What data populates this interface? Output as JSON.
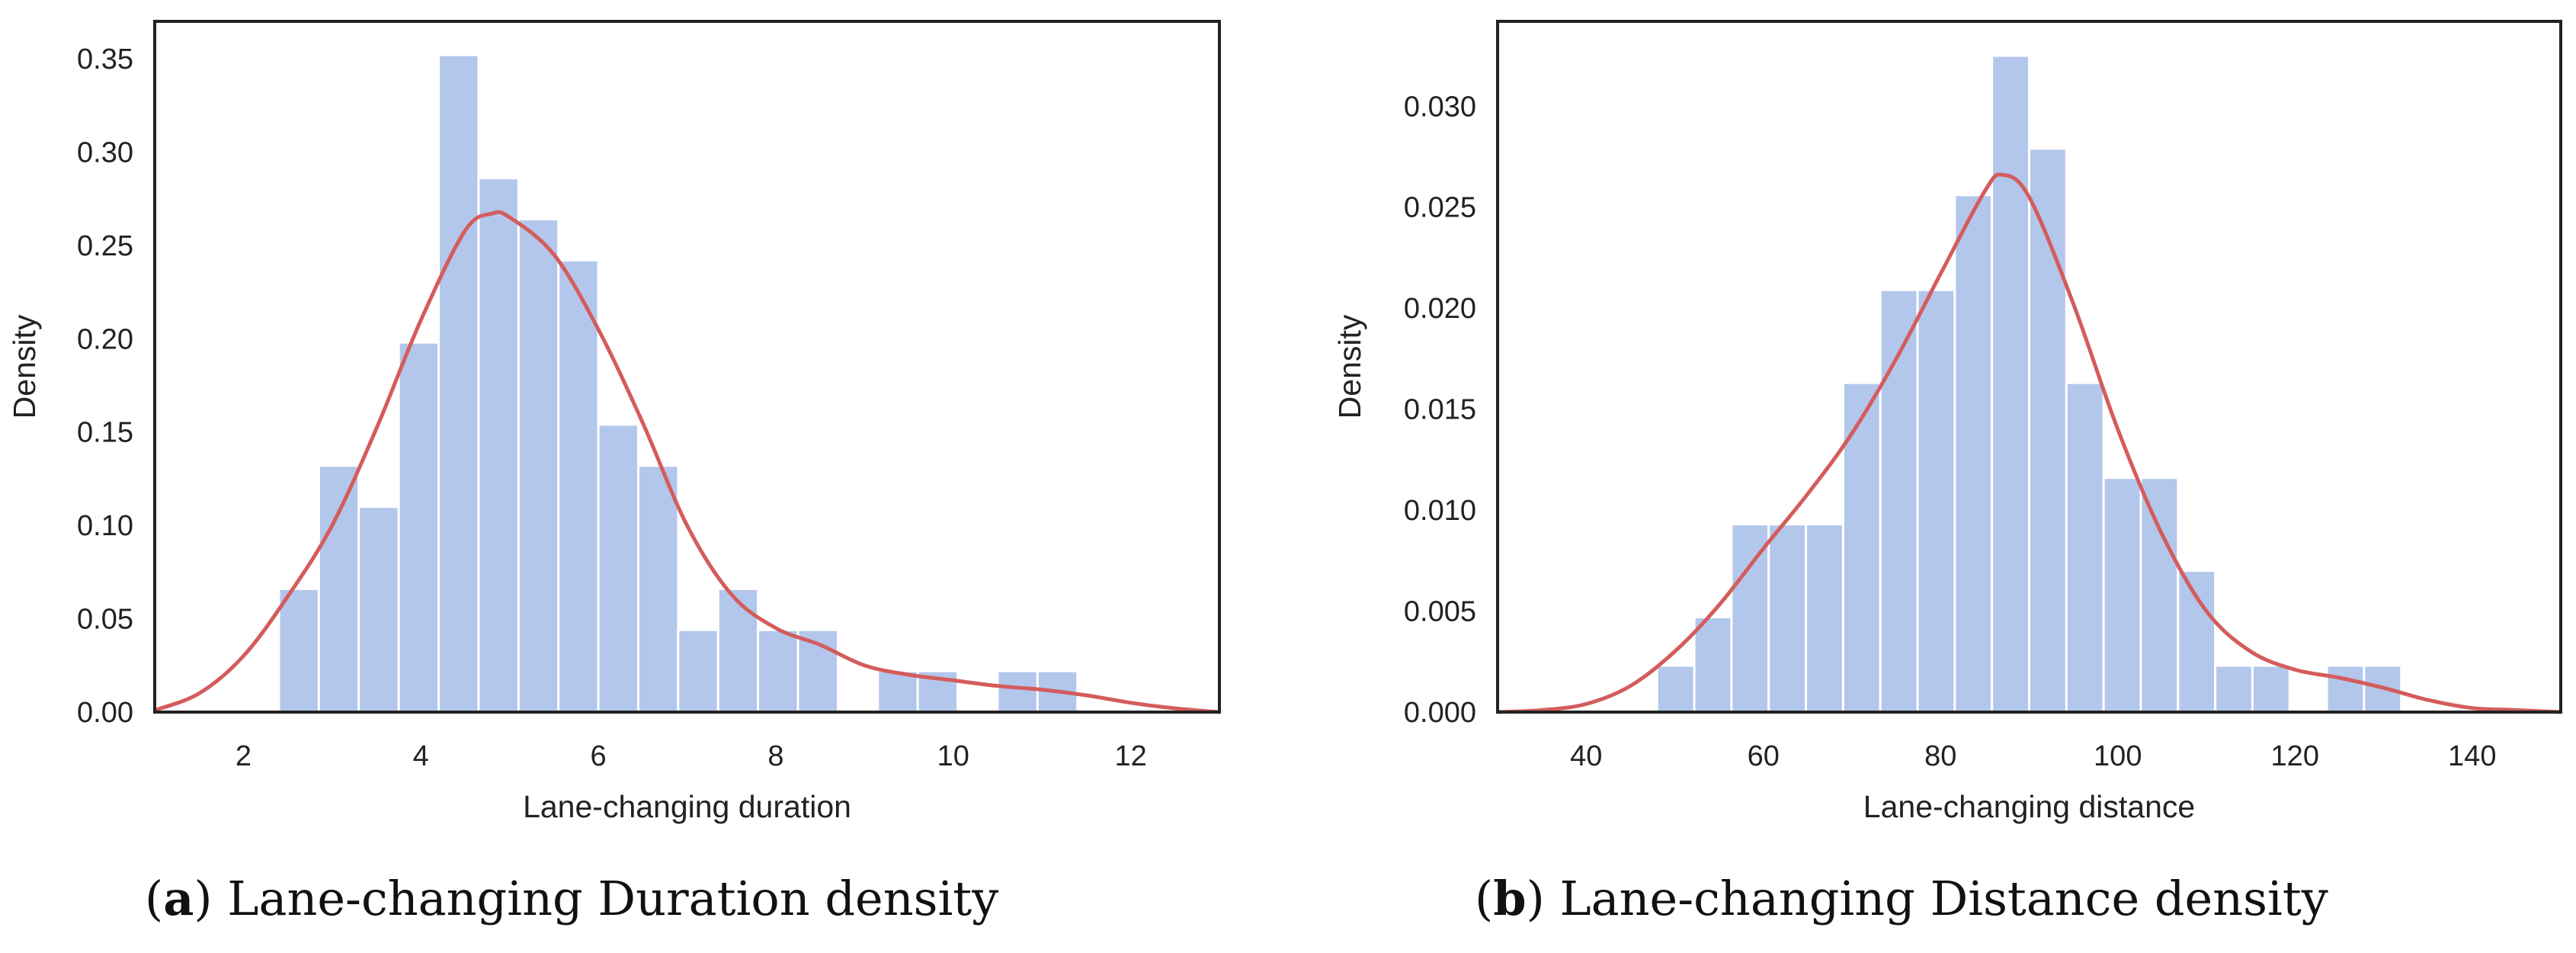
{
  "chart_data": [
    {
      "type": "bar",
      "subtype": "histogram-with-density",
      "xlabel": "Lane-changing duration",
      "ylabel": "Density",
      "xlim": [
        1.0,
        13.0
      ],
      "ylim": [
        0.0,
        0.37
      ],
      "xticks": [
        "2",
        "4",
        "6",
        "8",
        "10",
        "12"
      ],
      "yticks": [
        "0.00",
        "0.05",
        "0.10",
        "0.15",
        "0.20",
        "0.25",
        "0.30",
        "0.35"
      ],
      "bins": [
        {
          "x0": 2.4,
          "x1": 2.85,
          "density": 0.066
        },
        {
          "x0": 2.85,
          "x1": 3.3,
          "density": 0.132
        },
        {
          "x0": 3.3,
          "x1": 3.75,
          "density": 0.11
        },
        {
          "x0": 3.75,
          "x1": 4.2,
          "density": 0.198
        },
        {
          "x0": 4.2,
          "x1": 4.65,
          "density": 0.352
        },
        {
          "x0": 4.65,
          "x1": 5.1,
          "density": 0.286
        },
        {
          "x0": 5.1,
          "x1": 5.55,
          "density": 0.264
        },
        {
          "x0": 5.55,
          "x1": 6.0,
          "density": 0.242
        },
        {
          "x0": 6.0,
          "x1": 6.45,
          "density": 0.154
        },
        {
          "x0": 6.45,
          "x1": 6.9,
          "density": 0.132
        },
        {
          "x0": 6.9,
          "x1": 7.35,
          "density": 0.044
        },
        {
          "x0": 7.35,
          "x1": 7.8,
          "density": 0.066
        },
        {
          "x0": 7.8,
          "x1": 8.25,
          "density": 0.044
        },
        {
          "x0": 8.25,
          "x1": 8.7,
          "density": 0.044
        },
        {
          "x0": 9.15,
          "x1": 9.6,
          "density": 0.022
        },
        {
          "x0": 9.6,
          "x1": 10.05,
          "density": 0.022
        },
        {
          "x0": 10.5,
          "x1": 10.95,
          "density": 0.022
        },
        {
          "x0": 10.95,
          "x1": 11.4,
          "density": 0.022
        }
      ],
      "kde": {
        "name": "density curve",
        "x": [
          1.0,
          1.5,
          2.0,
          2.5,
          3.0,
          3.5,
          4.0,
          4.5,
          4.8,
          5.0,
          5.5,
          6.0,
          6.5,
          7.0,
          7.5,
          8.0,
          8.5,
          9.0,
          9.5,
          10.0,
          10.5,
          11.0,
          11.5,
          12.0,
          12.5,
          13.0
        ],
        "y": [
          0.001,
          0.01,
          0.03,
          0.062,
          0.1,
          0.152,
          0.21,
          0.258,
          0.267,
          0.265,
          0.245,
          0.205,
          0.155,
          0.1,
          0.063,
          0.045,
          0.036,
          0.025,
          0.02,
          0.017,
          0.014,
          0.012,
          0.009,
          0.005,
          0.002,
          0.0
        ]
      },
      "caption": {
        "letter": "a",
        "text": " Lane-changing Duration density"
      }
    },
    {
      "type": "bar",
      "subtype": "histogram-with-density",
      "xlabel": "Lane-changing distance",
      "ylabel": "Density",
      "xlim": [
        30.0,
        150.0
      ],
      "ylim": [
        0.0,
        0.0342
      ],
      "xticks": [
        "40",
        "60",
        "80",
        "100",
        "120",
        "140"
      ],
      "yticks": [
        "0.000",
        "0.005",
        "0.010",
        "0.015",
        "0.020",
        "0.025",
        "0.030"
      ],
      "bins": [
        {
          "x0": 48.0,
          "x1": 52.2,
          "density": 0.0023
        },
        {
          "x0": 52.2,
          "x1": 56.4,
          "density": 0.0047
        },
        {
          "x0": 56.4,
          "x1": 60.6,
          "density": 0.0093
        },
        {
          "x0": 60.6,
          "x1": 64.8,
          "density": 0.0093
        },
        {
          "x0": 64.8,
          "x1": 69.0,
          "density": 0.0093
        },
        {
          "x0": 69.0,
          "x1": 73.2,
          "density": 0.0163
        },
        {
          "x0": 73.2,
          "x1": 77.4,
          "density": 0.0209
        },
        {
          "x0": 77.4,
          "x1": 81.6,
          "density": 0.0209
        },
        {
          "x0": 81.6,
          "x1": 85.8,
          "density": 0.0256
        },
        {
          "x0": 85.8,
          "x1": 90.0,
          "density": 0.0325
        },
        {
          "x0": 90.0,
          "x1": 94.2,
          "density": 0.0279
        },
        {
          "x0": 94.2,
          "x1": 98.4,
          "density": 0.0163
        },
        {
          "x0": 98.4,
          "x1": 102.6,
          "density": 0.0116
        },
        {
          "x0": 102.6,
          "x1": 106.8,
          "density": 0.0116
        },
        {
          "x0": 106.8,
          "x1": 111.0,
          "density": 0.007
        },
        {
          "x0": 111.0,
          "x1": 115.2,
          "density": 0.0023
        },
        {
          "x0": 115.2,
          "x1": 119.4,
          "density": 0.0023
        },
        {
          "x0": 123.6,
          "x1": 127.8,
          "density": 0.0023
        },
        {
          "x0": 127.8,
          "x1": 132.0,
          "density": 0.0023
        }
      ],
      "kde": {
        "name": "density curve",
        "x": [
          30,
          35,
          40,
          45,
          50,
          55,
          60,
          65,
          70,
          75,
          80,
          85,
          87,
          90,
          95,
          100,
          105,
          110,
          115,
          120,
          125,
          130,
          135,
          140,
          145,
          150
        ],
        "y": [
          0.0,
          0.0001,
          0.0004,
          0.0013,
          0.003,
          0.0053,
          0.0081,
          0.0108,
          0.0138,
          0.0175,
          0.0217,
          0.0258,
          0.0266,
          0.0255,
          0.0202,
          0.014,
          0.0088,
          0.005,
          0.003,
          0.0021,
          0.0017,
          0.0012,
          0.0006,
          0.0002,
          0.0001,
          0.0
        ]
      },
      "caption": {
        "letter": "b",
        "text": " Lane-changing Distance density"
      }
    }
  ],
  "colors": {
    "bar": "#b3c7ec",
    "bar_edge": "#ffffff",
    "curve": "#d45c5c",
    "frame": "#222222"
  }
}
